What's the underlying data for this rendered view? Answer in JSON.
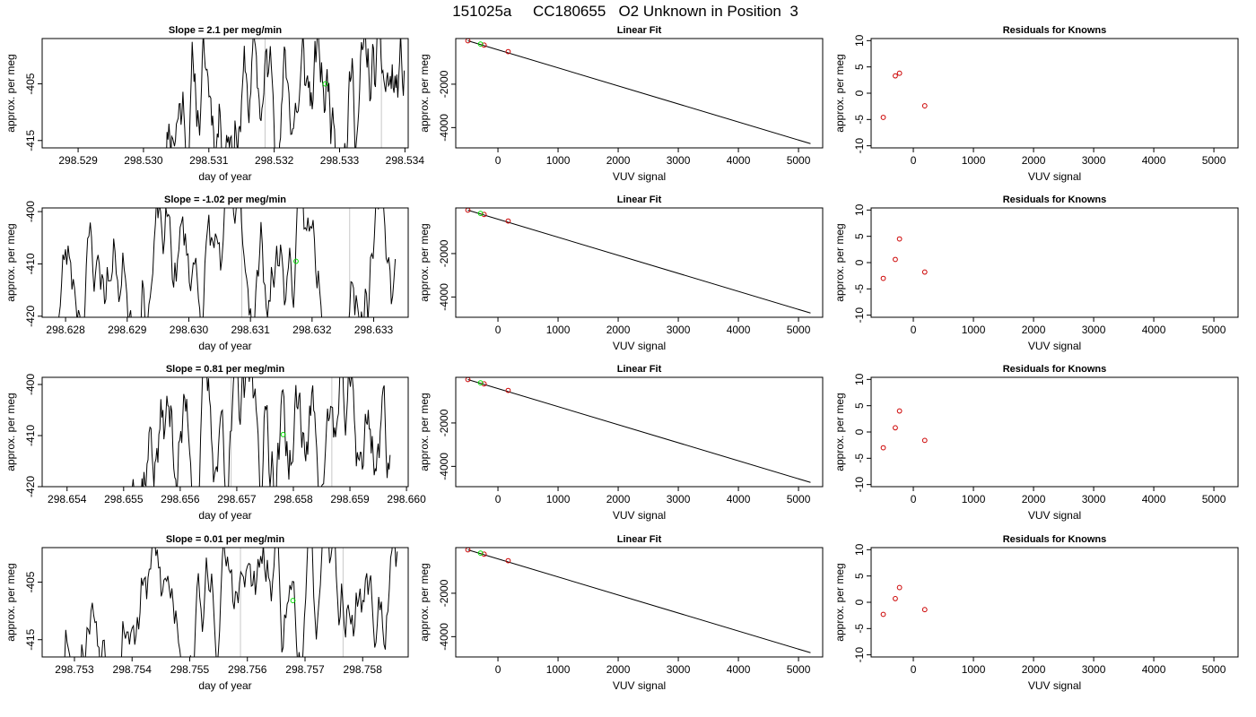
{
  "figure": {
    "title": "151025a     CC180655   O2 Unknown in Position  3"
  },
  "colors": {
    "trace": "#000000",
    "marker_unknown": "#00dd00",
    "marker_known": "#cc0000",
    "vline": "#c8c8c8"
  },
  "chart_data": [
    {
      "type": "line",
      "row": 1,
      "col": 1,
      "title": "Slope =  2.1  per meg/min",
      "xlabel": "day of year",
      "ylabel": "approx. per meg",
      "xlim": [
        298.52845,
        298.53405
      ],
      "ylim": [
        -416.3,
        -397.0
      ],
      "xticks": [
        298.529,
        298.53,
        298.531,
        298.532,
        298.533,
        298.534
      ],
      "xtick_labels": [
        "298.529",
        "298.530",
        "298.531",
        "298.532",
        "298.533",
        "298.534"
      ],
      "yticks": [
        -405,
        -415
      ],
      "ytick_labels": [
        "-405",
        "-415"
      ],
      "vlines": [
        298.53186,
        298.53364
      ],
      "series": [
        {
          "x_start": 298.53029,
          "x_end": 298.53399,
          "y_min": -416.3,
          "y_max": -397.0,
          "seed": 11
        }
      ],
      "unknown_point": {
        "x": 298.53278,
        "y": -405.0
      }
    },
    {
      "type": "line",
      "row": 1,
      "col": 2,
      "title": "Linear Fit",
      "xlabel": "VUV signal",
      "ylabel": "approx. per meg",
      "xlim": [
        -702,
        5402
      ],
      "ylim": [
        -4935,
        103
      ],
      "xticks": [
        0,
        1000,
        2000,
        3000,
        4000,
        5000
      ],
      "xtick_labels": [
        "0",
        "1000",
        "2000",
        "3000",
        "4000",
        "5000"
      ],
      "yticks": [
        -2000,
        -4000
      ],
      "ytick_labels": [
        "-2000",
        "-4000"
      ],
      "fit_line": [
        [
          -500,
          0
        ],
        [
          5200,
          -4740
        ]
      ],
      "known_points": [
        [
          -500,
          0
        ],
        [
          -230,
          -200
        ],
        [
          170,
          -500
        ]
      ],
      "unknown_points": [
        [
          -290,
          -150
        ]
      ]
    },
    {
      "type": "scatter",
      "row": 1,
      "col": 3,
      "title": "Residuals for Knowns",
      "xlabel": "VUV signal",
      "ylabel": "approx. per meg",
      "xlim": [
        -702,
        5402
      ],
      "ylim": [
        -10.4,
        10.4
      ],
      "xticks": [
        0,
        1000,
        2000,
        3000,
        4000,
        5000
      ],
      "xtick_labels": [
        "0",
        "1000",
        "2000",
        "3000",
        "4000",
        "5000"
      ],
      "yticks": [
        10,
        5,
        0,
        -5,
        -10
      ],
      "ytick_labels": [
        "10",
        "5",
        "0",
        "-5",
        "-10"
      ],
      "points": [
        [
          -500,
          -4.6
        ],
        [
          -300,
          3.3
        ],
        [
          -230,
          3.8
        ],
        [
          190,
          -2.4
        ]
      ]
    },
    {
      "type": "line",
      "row": 2,
      "col": 1,
      "title": "Slope =  -1.02  per meg/min",
      "xlabel": "day of year",
      "ylabel": "approx. per meg",
      "xlim": [
        298.62762,
        298.63356
      ],
      "ylim": [
        -420.2,
        -399.3
      ],
      "xticks": [
        298.628,
        298.629,
        298.63,
        298.631,
        298.632,
        298.633
      ],
      "xtick_labels": [
        "298.628",
        "298.629",
        "298.630",
        "298.631",
        "298.632",
        "298.633"
      ],
      "yticks": [
        -400,
        -410,
        -420
      ],
      "ytick_labels": [
        "-400",
        "-410",
        "-420"
      ],
      "vlines": [
        298.63086,
        298.63261
      ],
      "series": [
        {
          "x_start": 298.62785,
          "x_end": 298.63335,
          "y_min": -420.2,
          "y_max": -399.3,
          "seed": 23
        }
      ],
      "unknown_point": {
        "x": 298.63174,
        "y": -409.5
      }
    },
    {
      "type": "line",
      "row": 2,
      "col": 2,
      "title": "Linear Fit",
      "xlabel": "VUV signal",
      "ylabel": "approx. per meg",
      "xlim": [
        -702,
        5402
      ],
      "ylim": [
        -4935,
        103
      ],
      "xticks": [
        0,
        1000,
        2000,
        3000,
        4000,
        5000
      ],
      "xtick_labels": [
        "0",
        "1000",
        "2000",
        "3000",
        "4000",
        "5000"
      ],
      "yticks": [
        -2000,
        -4000
      ],
      "ytick_labels": [
        "-2000",
        "-4000"
      ],
      "fit_line": [
        [
          -500,
          0
        ],
        [
          5200,
          -4740
        ]
      ],
      "known_points": [
        [
          -500,
          0
        ],
        [
          -230,
          -200
        ],
        [
          170,
          -500
        ]
      ],
      "unknown_points": [
        [
          -290,
          -150
        ]
      ]
    },
    {
      "type": "scatter",
      "row": 2,
      "col": 3,
      "title": "Residuals for Knowns",
      "xlabel": "VUV signal",
      "ylabel": "approx. per meg",
      "xlim": [
        -702,
        5402
      ],
      "ylim": [
        -10.4,
        10.4
      ],
      "xticks": [
        0,
        1000,
        2000,
        3000,
        4000,
        5000
      ],
      "xtick_labels": [
        "0",
        "1000",
        "2000",
        "3000",
        "4000",
        "5000"
      ],
      "yticks": [
        10,
        5,
        0,
        -5,
        -10
      ],
      "ytick_labels": [
        "10",
        "5",
        "0",
        "-5",
        "-10"
      ],
      "points": [
        [
          -500,
          -3.0
        ],
        [
          -300,
          0.6
        ],
        [
          -230,
          4.5
        ],
        [
          190,
          -1.8
        ]
      ]
    },
    {
      "type": "line",
      "row": 3,
      "col": 1,
      "title": "Slope =  0.81  per meg/min",
      "xlabel": "day of year",
      "ylabel": "approx. per meg",
      "xlim": [
        298.65356,
        298.66003
      ],
      "ylim": [
        -420.0,
        -398.6
      ],
      "xticks": [
        298.654,
        298.655,
        298.656,
        298.657,
        298.658,
        298.659,
        298.66
      ],
      "xtick_labels": [
        "298.654",
        "298.655",
        "298.656",
        "298.657",
        "298.658",
        "298.659",
        "298.660"
      ],
      "yticks": [
        -400,
        -410,
        -420
      ],
      "ytick_labels": [
        "-400",
        "-410",
        "-420"
      ],
      "vlines": [
        298.6569,
        298.65868
      ],
      "series": [
        {
          "x_start": 298.65515,
          "x_end": 298.65971,
          "y_min": -420.0,
          "y_max": -398.6,
          "seed": 37
        }
      ],
      "unknown_point": {
        "x": 298.65782,
        "y": -409.8
      }
    },
    {
      "type": "line",
      "row": 3,
      "col": 2,
      "title": "Linear Fit",
      "xlabel": "VUV signal",
      "ylabel": "approx. per meg",
      "xlim": [
        -702,
        5402
      ],
      "ylim": [
        -4935,
        103
      ],
      "xticks": [
        0,
        1000,
        2000,
        3000,
        4000,
        5000
      ],
      "xtick_labels": [
        "0",
        "1000",
        "2000",
        "3000",
        "4000",
        "5000"
      ],
      "yticks": [
        -2000,
        -4000
      ],
      "ytick_labels": [
        "-2000",
        "-4000"
      ],
      "fit_line": [
        [
          -500,
          0
        ],
        [
          5200,
          -4740
        ]
      ],
      "known_points": [
        [
          -500,
          0
        ],
        [
          -230,
          -200
        ],
        [
          170,
          -500
        ]
      ],
      "unknown_points": [
        [
          -290,
          -150
        ]
      ]
    },
    {
      "type": "scatter",
      "row": 3,
      "col": 3,
      "title": "Residuals for Knowns",
      "xlabel": "VUV signal",
      "ylabel": "approx. per meg",
      "xlim": [
        -702,
        5402
      ],
      "ylim": [
        -10.4,
        10.4
      ],
      "xticks": [
        0,
        1000,
        2000,
        3000,
        4000,
        5000
      ],
      "xtick_labels": [
        "0",
        "1000",
        "2000",
        "3000",
        "4000",
        "5000"
      ],
      "yticks": [
        10,
        5,
        0,
        -5,
        -10
      ],
      "ytick_labels": [
        "10",
        "5",
        "0",
        "-5",
        "-10"
      ],
      "points": [
        [
          -500,
          -3.0
        ],
        [
          -300,
          0.8
        ],
        [
          -230,
          4.0
        ],
        [
          190,
          -1.6
        ]
      ]
    },
    {
      "type": "line",
      "row": 4,
      "col": 1,
      "title": "Slope =  0.01  per meg/min",
      "xlabel": "day of year",
      "ylabel": "approx. per meg",
      "xlim": [
        298.75244,
        298.75879
      ],
      "ylim": [
        -418.0,
        -399.0
      ],
      "xticks": [
        298.753,
        298.754,
        298.755,
        298.756,
        298.757,
        298.758
      ],
      "xtick_labels": [
        "298.753",
        "298.754",
        "298.755",
        "298.756",
        "298.757",
        "298.758"
      ],
      "yticks": [
        -405,
        -415
      ],
      "ytick_labels": [
        "-405",
        "-415"
      ],
      "vlines": [
        298.75588,
        298.75766
      ],
      "series": [
        {
          "x_start": 298.75262,
          "x_end": 298.7586,
          "y_min": -418.0,
          "y_max": -399.0,
          "seed": 53
        }
      ],
      "unknown_point": {
        "x": 298.75679,
        "y": -408.2
      }
    },
    {
      "type": "line",
      "row": 4,
      "col": 2,
      "title": "Linear Fit",
      "xlabel": "VUV signal",
      "ylabel": "approx. per meg",
      "xlim": [
        -702,
        5402
      ],
      "ylim": [
        -4935,
        103
      ],
      "xticks": [
        0,
        1000,
        2000,
        3000,
        4000,
        5000
      ],
      "xtick_labels": [
        "0",
        "1000",
        "2000",
        "3000",
        "4000",
        "5000"
      ],
      "yticks": [
        -2000,
        -4000
      ],
      "ytick_labels": [
        "-2000",
        "-4000"
      ],
      "fit_line": [
        [
          -500,
          0
        ],
        [
          5200,
          -4740
        ]
      ],
      "known_points": [
        [
          -500,
          0
        ],
        [
          -230,
          -200
        ],
        [
          170,
          -500
        ]
      ],
      "unknown_points": [
        [
          -290,
          -150
        ]
      ]
    },
    {
      "type": "scatter",
      "row": 4,
      "col": 3,
      "title": "Residuals for Knowns",
      "xlabel": "VUV signal",
      "ylabel": "approx. per meg",
      "xlim": [
        -702,
        5402
      ],
      "ylim": [
        -10.4,
        10.4
      ],
      "xticks": [
        0,
        1000,
        2000,
        3000,
        4000,
        5000
      ],
      "xtick_labels": [
        "0",
        "1000",
        "2000",
        "3000",
        "4000",
        "5000"
      ],
      "yticks": [
        10,
        5,
        0,
        -5,
        -10
      ],
      "ytick_labels": [
        "10",
        "5",
        "0",
        "-5",
        "-10"
      ],
      "points": [
        [
          -500,
          -2.3
        ],
        [
          -300,
          0.7
        ],
        [
          -230,
          2.8
        ],
        [
          190,
          -1.4
        ]
      ]
    }
  ]
}
